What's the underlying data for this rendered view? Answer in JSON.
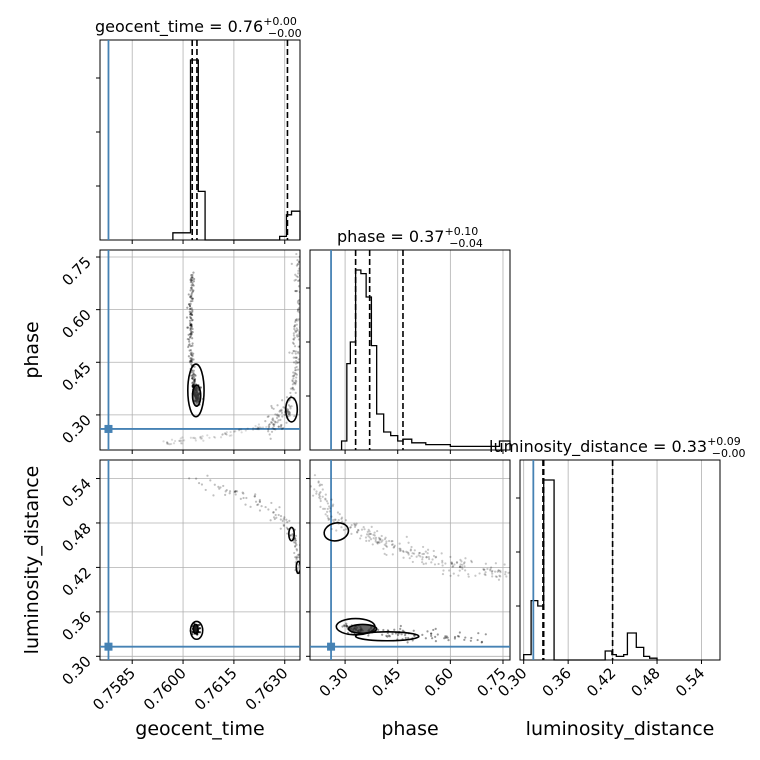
{
  "chart_data": {
    "type": "corner",
    "colors": {
      "truth": "#4682b4",
      "hist": "#000000",
      "grid": "#b0b0b0"
    },
    "parameters": [
      {
        "name": "geocent_time",
        "label": "geocent_time",
        "title_prefix": "geocent_time = ",
        "median": "0.76",
        "upper": "+0.00",
        "lower": "−0.00",
        "range": [
          0.75755,
          0.76345
        ],
        "ticks": [
          0.7585,
          0.76,
          0.7615,
          0.763
        ],
        "tick_labels": [
          "0.7585",
          "0.7600",
          "0.7615",
          "0.7630"
        ],
        "truth": 0.7578,
        "quantiles": [
          0.76027,
          0.76041,
          0.76308
        ]
      },
      {
        "name": "phase",
        "label": "phase",
        "title_prefix": "phase = ",
        "median": "0.37",
        "upper": "+0.10",
        "lower": "−0.04",
        "range": [
          0.2,
          0.77
        ],
        "ticks": [
          0.3,
          0.45,
          0.6,
          0.75
        ],
        "tick_labels": [
          "0.30",
          "0.45",
          "0.60",
          "0.75"
        ],
        "truth": 0.26,
        "quantiles": [
          0.33,
          0.37,
          0.465
        ]
      },
      {
        "name": "luminosity_distance",
        "label": "luminosity_distance",
        "title_prefix": "luminosity_distance = ",
        "median": "0.33",
        "upper": "+0.09",
        "lower": "−0.00",
        "range": [
          0.295,
          0.565
        ],
        "ticks": [
          0.3,
          0.36,
          0.42,
          0.48,
          0.54
        ],
        "tick_labels": [
          "0.30",
          "0.36",
          "0.42",
          "0.48",
          "0.54"
        ],
        "truth": 0.313,
        "quantiles": [
          0.326,
          0.327,
          0.42
        ]
      }
    ],
    "histograms": [
      {
        "param": "geocent_time",
        "bins": [
          [
            0.7597,
            0.76022,
            0.04
          ],
          [
            0.76022,
            0.76032,
            1.0
          ],
          [
            0.76032,
            0.76045,
            1.0
          ],
          [
            0.76045,
            0.76065,
            0.27
          ],
          [
            0.76285,
            0.76305,
            0.02
          ],
          [
            0.76305,
            0.7632,
            0.14
          ],
          [
            0.7632,
            0.76345,
            0.16
          ]
        ]
      },
      {
        "param": "phase",
        "bins": [
          [
            0.29,
            0.305,
            0.05
          ],
          [
            0.305,
            0.315,
            0.48
          ],
          [
            0.315,
            0.33,
            0.6
          ],
          [
            0.33,
            0.345,
            1.0
          ],
          [
            0.345,
            0.36,
            0.98
          ],
          [
            0.36,
            0.375,
            0.85
          ],
          [
            0.375,
            0.39,
            0.58
          ],
          [
            0.39,
            0.41,
            0.2
          ],
          [
            0.41,
            0.43,
            0.1
          ],
          [
            0.43,
            0.45,
            0.08
          ],
          [
            0.45,
            0.465,
            0.05
          ],
          [
            0.465,
            0.49,
            0.06
          ],
          [
            0.49,
            0.53,
            0.04
          ],
          [
            0.53,
            0.6,
            0.03
          ],
          [
            0.6,
            0.74,
            0.02
          ],
          [
            0.74,
            0.77,
            0.05
          ]
        ]
      },
      {
        "param": "luminosity_distance",
        "bins": [
          [
            0.3,
            0.31,
            0.03
          ],
          [
            0.31,
            0.319,
            0.33
          ],
          [
            0.319,
            0.327,
            0.3
          ],
          [
            0.327,
            0.341,
            1.0
          ],
          [
            0.341,
            0.347,
            0.0
          ],
          [
            0.41,
            0.419,
            0.05
          ],
          [
            0.419,
            0.425,
            0.03
          ],
          [
            0.425,
            0.435,
            0.02
          ],
          [
            0.435,
            0.44,
            0.03
          ],
          [
            0.44,
            0.452,
            0.15
          ],
          [
            0.452,
            0.462,
            0.07
          ],
          [
            0.462,
            0.47,
            0.02
          ],
          [
            0.47,
            0.48,
            0.01
          ]
        ]
      }
    ],
    "scatter_panels": [
      {
        "x": "geocent_time",
        "y": "phase"
      },
      {
        "x": "geocent_time",
        "y": "luminosity_distance"
      },
      {
        "x": "phase",
        "y": "luminosity_distance"
      }
    ]
  }
}
